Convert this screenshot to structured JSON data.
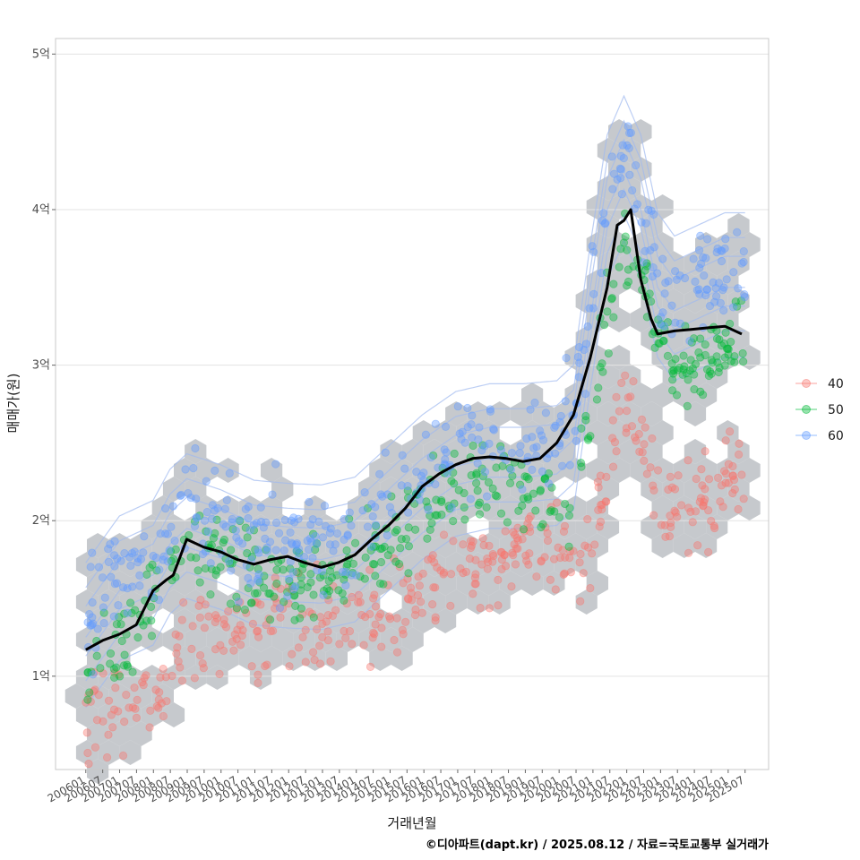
{
  "chart_data": {
    "type": "scatter",
    "xlabel": "거래년월",
    "ylabel": "매매가(원)",
    "caption": "©디아파트(dapt.kr) / 2025.08.12 / 자료=국토교통부 실거래가",
    "ylim": [
      0.4,
      5.1
    ],
    "y_ticks": [
      1,
      2,
      3,
      4,
      5
    ],
    "y_tick_labels": [
      "1억",
      "2억",
      "3억",
      "4억",
      "5억"
    ],
    "x_start": 2006.0,
    "x_end": 2025.6,
    "xlim": [
      2005.1,
      2026.3
    ],
    "x_ticks": [
      "200601",
      "200607",
      "200701",
      "200707",
      "200801",
      "200807",
      "200901",
      "200907",
      "201001",
      "201007",
      "201101",
      "201107",
      "201201",
      "201207",
      "201301",
      "201307",
      "201401",
      "201407",
      "201501",
      "201507",
      "201601",
      "201607",
      "201701",
      "201707",
      "201801",
      "201807",
      "201901",
      "201907",
      "202001",
      "202007",
      "202101",
      "202107",
      "202201",
      "202207",
      "202301",
      "202307",
      "202401",
      "202407",
      "202501",
      "202507"
    ],
    "legend": [
      {
        "label": "40",
        "color": "#F8766D"
      },
      {
        "label": "50",
        "color": "#00BA38"
      },
      {
        "label": "60",
        "color": "#619CFF"
      }
    ],
    "median_line": {
      "color": "#000000",
      "x": [
        2006.0,
        2006.5,
        2007.0,
        2007.5,
        2008.0,
        2008.4,
        2008.6,
        2009.0,
        2009.5,
        2010.0,
        2010.5,
        2011.0,
        2011.5,
        2012.0,
        2012.5,
        2013.0,
        2013.5,
        2014.0,
        2014.5,
        2015.0,
        2015.5,
        2016.0,
        2016.5,
        2017.0,
        2017.5,
        2018.0,
        2018.5,
        2019.0,
        2019.5,
        2020.0,
        2020.5,
        2021.0,
        2021.5,
        2021.8,
        2022.0,
        2022.2,
        2022.5,
        2022.8,
        2023.0,
        2023.5,
        2024.0,
        2024.5,
        2025.0,
        2025.5
      ],
      "y": [
        1.17,
        1.23,
        1.27,
        1.33,
        1.55,
        1.62,
        1.65,
        1.88,
        1.83,
        1.8,
        1.75,
        1.72,
        1.75,
        1.77,
        1.73,
        1.7,
        1.73,
        1.78,
        1.88,
        1.97,
        2.08,
        2.22,
        2.3,
        2.36,
        2.4,
        2.41,
        2.4,
        2.38,
        2.4,
        2.5,
        2.68,
        3.05,
        3.5,
        3.9,
        3.93,
        4.0,
        3.55,
        3.3,
        3.2,
        3.22,
        3.23,
        3.24,
        3.25,
        3.2
      ]
    },
    "series": [
      {
        "name": "40",
        "color": "#F8766D",
        "trend_x": [
          2006.0,
          2007.0,
          2008.0,
          2008.5,
          2009.0,
          2010.0,
          2011.0,
          2012.0,
          2013.0,
          2014.0,
          2015.0,
          2016.0,
          2017.0,
          2018.0,
          2019.0,
          2020.0,
          2020.5,
          2021.0,
          2021.5,
          2022.0,
          2022.5,
          2023.0,
          2023.5,
          2024.0,
          2024.5,
          2025.0,
          2025.5
        ],
        "trend_y": [
          0.75,
          0.82,
          0.9,
          1.0,
          1.2,
          1.28,
          1.3,
          1.32,
          1.32,
          1.34,
          1.38,
          1.55,
          1.7,
          1.77,
          1.8,
          1.82,
          1.83,
          1.9,
          2.3,
          2.85,
          2.6,
          2.15,
          2.12,
          2.14,
          2.18,
          2.2,
          2.3
        ],
        "spread": 0.15
      },
      {
        "name": "50",
        "color": "#00BA38",
        "trend_x": [
          2006.0,
          2007.0,
          2008.0,
          2008.5,
          2009.0,
          2010.0,
          2011.0,
          2012.0,
          2013.0,
          2014.0,
          2015.0,
          2016.0,
          2017.0,
          2018.0,
          2019.0,
          2020.0,
          2020.5,
          2021.0,
          2021.5,
          2022.0,
          2022.5,
          2023.0,
          2023.5,
          2024.0,
          2024.5,
          2025.0,
          2025.5
        ],
        "trend_y": [
          0.95,
          1.2,
          1.45,
          1.7,
          1.8,
          1.72,
          1.65,
          1.62,
          1.62,
          1.7,
          1.85,
          2.05,
          2.2,
          2.22,
          2.2,
          2.1,
          2.15,
          2.7,
          3.3,
          3.75,
          3.7,
          3.2,
          3.0,
          3.0,
          3.05,
          3.1,
          3.2
        ],
        "spread": 0.13
      },
      {
        "name": "60",
        "color": "#619CFF",
        "trend_x": [
          2006.0,
          2007.0,
          2008.0,
          2008.5,
          2009.0,
          2010.0,
          2011.0,
          2012.0,
          2013.0,
          2014.0,
          2015.0,
          2016.0,
          2017.0,
          2018.0,
          2019.0,
          2020.0,
          2020.5,
          2021.0,
          2021.5,
          2022.0,
          2022.5,
          2023.0,
          2023.5,
          2024.0,
          2024.5,
          2025.0,
          2025.5
        ],
        "trend_y": [
          1.35,
          1.65,
          1.75,
          1.95,
          2.05,
          1.98,
          1.88,
          1.86,
          1.85,
          1.9,
          2.1,
          2.3,
          2.45,
          2.5,
          2.5,
          2.52,
          2.62,
          3.4,
          4.1,
          4.35,
          4.1,
          3.6,
          3.45,
          3.5,
          3.55,
          3.6,
          3.6
        ],
        "spread": 0.17
      }
    ]
  }
}
